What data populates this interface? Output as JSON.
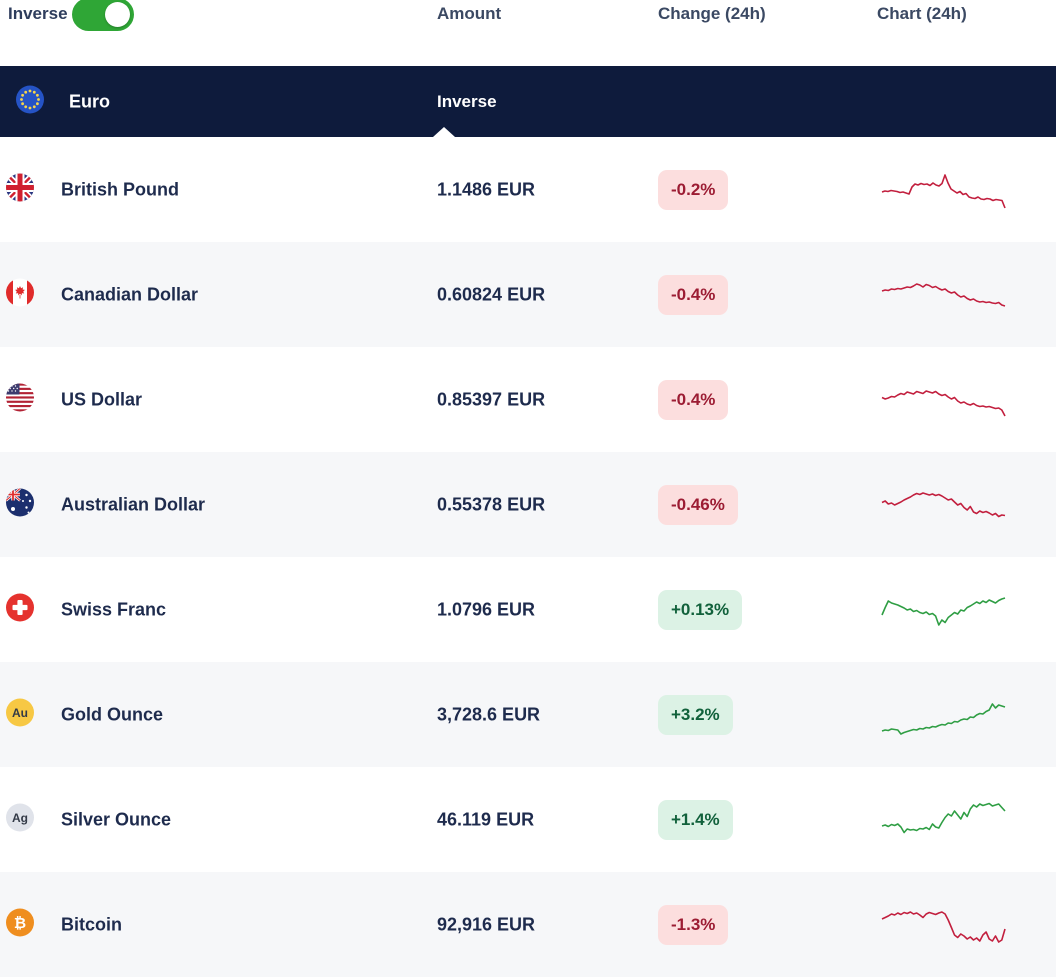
{
  "toolbar": {
    "inverse_label": "Inverse",
    "inverse_toggle_on": true
  },
  "columns": {
    "amount": "Amount",
    "change": "Change (24h)",
    "chart": "Chart (24h)"
  },
  "base": {
    "name": "Euro",
    "code": "EUR",
    "amount_column_label": "Inverse",
    "icon": "eu-flag-icon"
  },
  "colors": {
    "header_bar": "#0e1b3c",
    "row_alt": "#f6f7f9",
    "toggle_on": "#2fa636",
    "spark_down": "#c21f3e",
    "spark_up": "#2f9e44",
    "badge_neg_bg": "#fcdede",
    "badge_neg_text": "#9c1c33",
    "badge_pos_bg": "#dcf2e5",
    "badge_pos_text": "#11613b"
  },
  "rows": [
    {
      "name": "British Pound",
      "icon": "gbp-flag-icon",
      "amount": "1.1486 EUR",
      "change": "-0.2%",
      "direction": "down",
      "spark": [
        46,
        48,
        47,
        49,
        48,
        47,
        45,
        46,
        44,
        42,
        56,
        62,
        60,
        63,
        61,
        62,
        59,
        64,
        60,
        58,
        63,
        80,
        64,
        52,
        48,
        44,
        47,
        41,
        43,
        36,
        34,
        33,
        36,
        32,
        31,
        33,
        32,
        29,
        31,
        30,
        29,
        14
      ]
    },
    {
      "name": "Canadian Dollar",
      "icon": "cad-flag-icon",
      "amount": "0.60824 EUR",
      "change": "-0.4%",
      "direction": "down",
      "spark": [
        58,
        60,
        59,
        62,
        61,
        63,
        62,
        64,
        66,
        65,
        68,
        72,
        70,
        66,
        71,
        69,
        65,
        67,
        63,
        60,
        62,
        57,
        54,
        56,
        50,
        46,
        48,
        43,
        40,
        42,
        38,
        36,
        37,
        35,
        36,
        34,
        33,
        35,
        30,
        28
      ]
    },
    {
      "name": "US Dollar",
      "icon": "usd-flag-icon",
      "amount": "0.85397 EUR",
      "change": "-0.4%",
      "direction": "down",
      "spark": [
        55,
        52,
        54,
        57,
        56,
        60,
        63,
        61,
        66,
        64,
        62,
        67,
        65,
        63,
        68,
        66,
        64,
        67,
        62,
        59,
        61,
        56,
        52,
        55,
        48,
        44,
        46,
        42,
        40,
        43,
        39,
        37,
        38,
        36,
        37,
        35,
        33,
        34,
        30,
        18
      ]
    },
    {
      "name": "Australian Dollar",
      "icon": "aud-flag-icon",
      "amount": "0.55378 EUR",
      "change": "-0.46%",
      "direction": "down",
      "spark": [
        55,
        58,
        52,
        54,
        50,
        53,
        56,
        60,
        63,
        66,
        70,
        73,
        71,
        74,
        72,
        70,
        72,
        69,
        71,
        68,
        64,
        60,
        62,
        56,
        50,
        53,
        45,
        40,
        47,
        36,
        33,
        38,
        35,
        37,
        34,
        30,
        33,
        27,
        30,
        29
      ]
    },
    {
      "name": "Swiss Franc",
      "icon": "chf-flag-icon",
      "amount": "1.0796 EUR",
      "change": "+0.13%",
      "direction": "up",
      "spark": [
        40,
        55,
        68,
        64,
        62,
        60,
        57,
        54,
        50,
        52,
        47,
        49,
        45,
        43,
        46,
        41,
        43,
        38,
        20,
        30,
        25,
        35,
        40,
        45,
        42,
        50,
        48,
        55,
        58,
        62,
        66,
        63,
        68,
        65,
        70,
        67,
        64,
        69,
        72,
        74
      ]
    },
    {
      "name": "Gold Ounce",
      "icon": "gold-au-icon",
      "amount": "3,728.6 EUR",
      "change": "+3.2%",
      "direction": "up",
      "spark": [
        18,
        20,
        19,
        22,
        21,
        20,
        12,
        15,
        17,
        19,
        21,
        20,
        23,
        22,
        25,
        24,
        27,
        26,
        29,
        31,
        30,
        34,
        33,
        37,
        36,
        40,
        42,
        41,
        46,
        45,
        50,
        53,
        52,
        57,
        60,
        72,
        64,
        70,
        68,
        66
      ]
    },
    {
      "name": "Silver Ounce",
      "icon": "silver-ag-icon",
      "amount": "46.119 EUR",
      "change": "+1.4%",
      "direction": "up",
      "spark": [
        38,
        40,
        37,
        41,
        39,
        42,
        36,
        25,
        32,
        30,
        31,
        29,
        33,
        32,
        35,
        31,
        42,
        36,
        34,
        45,
        55,
        62,
        58,
        68,
        60,
        52,
        65,
        57,
        72,
        80,
        76,
        82,
        79,
        81,
        83,
        78,
        80,
        82,
        75,
        68
      ]
    },
    {
      "name": "Bitcoin",
      "icon": "btc-icon",
      "amount": "92,916 EUR",
      "change": "-1.3%",
      "direction": "down",
      "spark": [
        62,
        65,
        68,
        72,
        70,
        74,
        71,
        75,
        73,
        76,
        72,
        74,
        70,
        65,
        72,
        75,
        73,
        71,
        74,
        76,
        72,
        60,
        45,
        30,
        25,
        32,
        28,
        22,
        26,
        20,
        24,
        18,
        30,
        36,
        22,
        18,
        28,
        16,
        20,
        42
      ]
    }
  ]
}
